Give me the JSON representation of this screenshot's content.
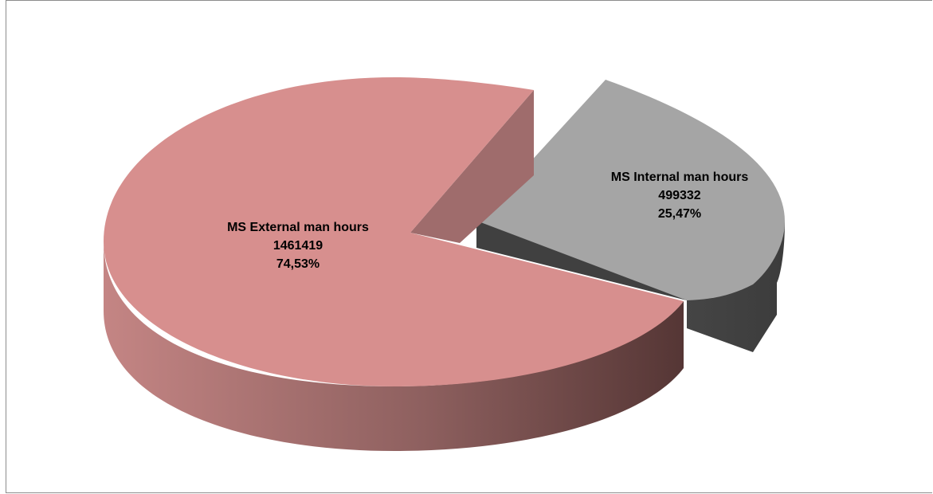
{
  "chart_data": {
    "type": "pie",
    "style": "3d-exploded",
    "title": "",
    "slices": [
      {
        "label": "MS External man hours",
        "value": 1461419,
        "percent_label": "74,53%",
        "color": "#d78f8e"
      },
      {
        "label": "MS Internal man hours",
        "value": 499332,
        "percent_label": "25,47%",
        "color": "#a5a5a5"
      }
    ]
  }
}
